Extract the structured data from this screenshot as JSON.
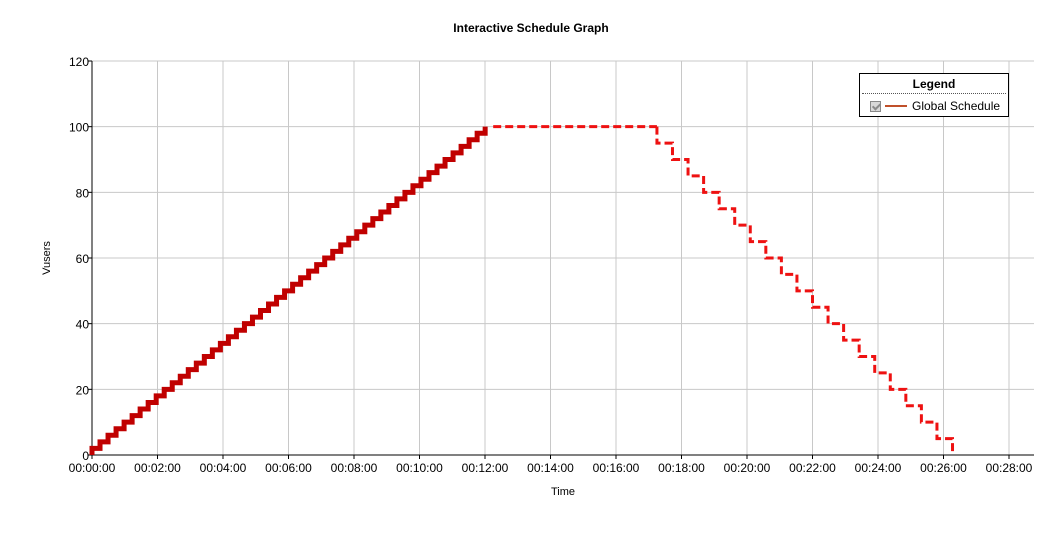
{
  "chart_data": {
    "type": "line",
    "title": "Interactive Schedule Graph",
    "xlabel": "Time",
    "ylabel": "Vusers",
    "xlim": [
      "00:00:00",
      "00:28:00"
    ],
    "ylim": [
      0,
      120
    ],
    "x_ticks": [
      "00:00:00",
      "00:02:00",
      "00:04:00",
      "00:06:00",
      "00:08:00",
      "00:10:00",
      "00:12:00",
      "00:14:00",
      "00:16:00",
      "00:18:00",
      "00:20:00",
      "00:22:00",
      "00:24:00",
      "00:26:00",
      "00:28:00"
    ],
    "y_ticks": [
      0,
      20,
      40,
      60,
      80,
      100,
      120
    ],
    "grid": true,
    "legend": {
      "title": "Legend",
      "placement": "top-right",
      "entries": [
        "Global Schedule"
      ]
    },
    "series": [
      {
        "name": "Global Schedule",
        "color": "#c00000",
        "segments": [
          {
            "phase": "ramp-up",
            "style": "solid-thick",
            "from": [
              "00:00:00",
              0
            ],
            "to": [
              "00:12:15",
              100
            ],
            "step_users": 2,
            "step_time_sec": 14.7
          },
          {
            "phase": "duration",
            "style": "dashed",
            "color": "#ee1111",
            "from": [
              "00:12:15",
              100
            ],
            "to": [
              "00:17:15",
              100
            ]
          },
          {
            "phase": "ramp-down",
            "style": "dashed",
            "color": "#ee1111",
            "from": [
              "00:17:15",
              100
            ],
            "to": [
              "00:26:45",
              0
            ],
            "step_users": 5,
            "step_time_sec": 28.5
          }
        ]
      }
    ]
  }
}
